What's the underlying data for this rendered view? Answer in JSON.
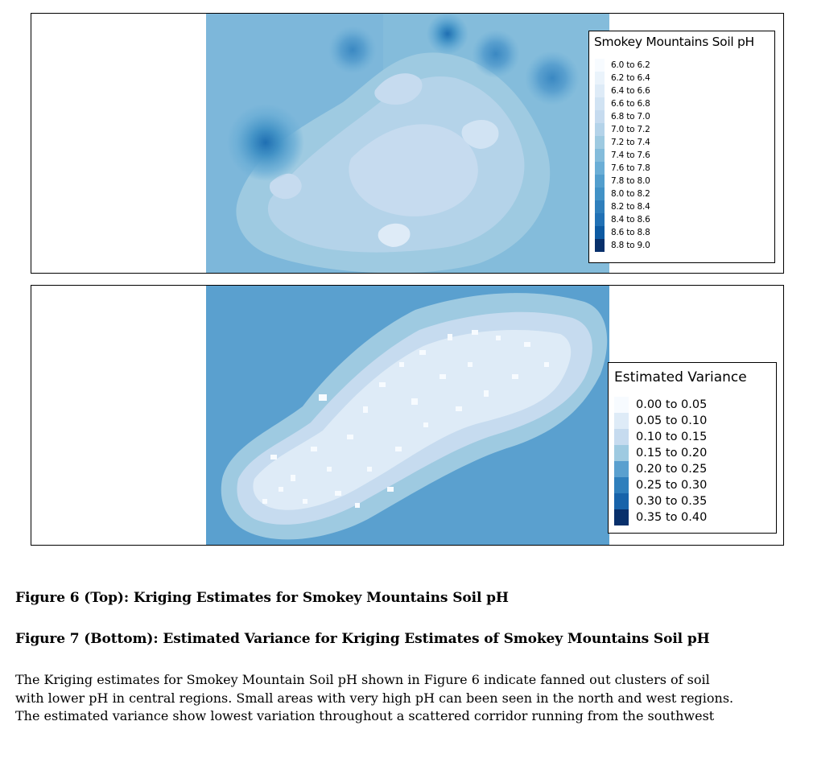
{
  "figure_top": {
    "legend": {
      "title": "Smokey Mountains Soil pH",
      "items": [
        {
          "label": "6.0 to 6.2",
          "color": "#f7fbff"
        },
        {
          "label": "6.2 to 6.4",
          "color": "#eaf3fb"
        },
        {
          "label": "6.4 to 6.6",
          "color": "#deebf7"
        },
        {
          "label": "6.6 to 6.8",
          "color": "#d1e3f3"
        },
        {
          "label": "6.8 to 7.0",
          "color": "#c6dbef"
        },
        {
          "label": "7.0 to 7.2",
          "color": "#b4d3e9"
        },
        {
          "label": "7.2 to 7.4",
          "color": "#9ecae1"
        },
        {
          "label": "7.4 to 7.6",
          "color": "#84bcdb"
        },
        {
          "label": "7.6 to 7.8",
          "color": "#6baed6"
        },
        {
          "label": "7.8 to 8.0",
          "color": "#539ecd"
        },
        {
          "label": "8.0 to 8.2",
          "color": "#4292c6"
        },
        {
          "label": "8.2 to 8.4",
          "color": "#2f7fbc"
        },
        {
          "label": "8.4 to 8.6",
          "color": "#2171b5"
        },
        {
          "label": "8.6 to 8.8",
          "color": "#0d5aa2"
        },
        {
          "label": "8.8 to 9.0",
          "color": "#08306b"
        }
      ]
    }
  },
  "figure_bottom": {
    "legend": {
      "title": "Estimated Variance",
      "items": [
        {
          "label": "0.00 to 0.05",
          "color": "#f7fbff"
        },
        {
          "label": "0.05 to 0.10",
          "color": "#deebf7"
        },
        {
          "label": "0.10 to 0.15",
          "color": "#c6dbef"
        },
        {
          "label": "0.15 to 0.20",
          "color": "#9ecae1"
        },
        {
          "label": "0.20 to 0.25",
          "color": "#5aa0cf"
        },
        {
          "label": "0.25 to 0.30",
          "color": "#2f7fbc"
        },
        {
          "label": "0.30 to 0.35",
          "color": "#1763aa"
        },
        {
          "label": "0.35 to 0.40",
          "color": "#08306b"
        }
      ]
    }
  },
  "captions": {
    "fig6": "Figure 6 (Top): Kriging Estimates for Smokey Mountains Soil pH",
    "fig7": "Figure 7 (Bottom): Estimated Variance for Kriging Estimates of Smokey Mountains Soil pH"
  },
  "body_lines": [
    "The Kriging estimates for Smokey Mountain Soil pH shown in Figure 6 indicate fanned out clusters of soil",
    "with lower pH in central regions. Small areas with very high pH can been seen in the north and west regions.",
    "The estimated variance show lowest variation throughout a scattered corridor running from the southwest"
  ]
}
